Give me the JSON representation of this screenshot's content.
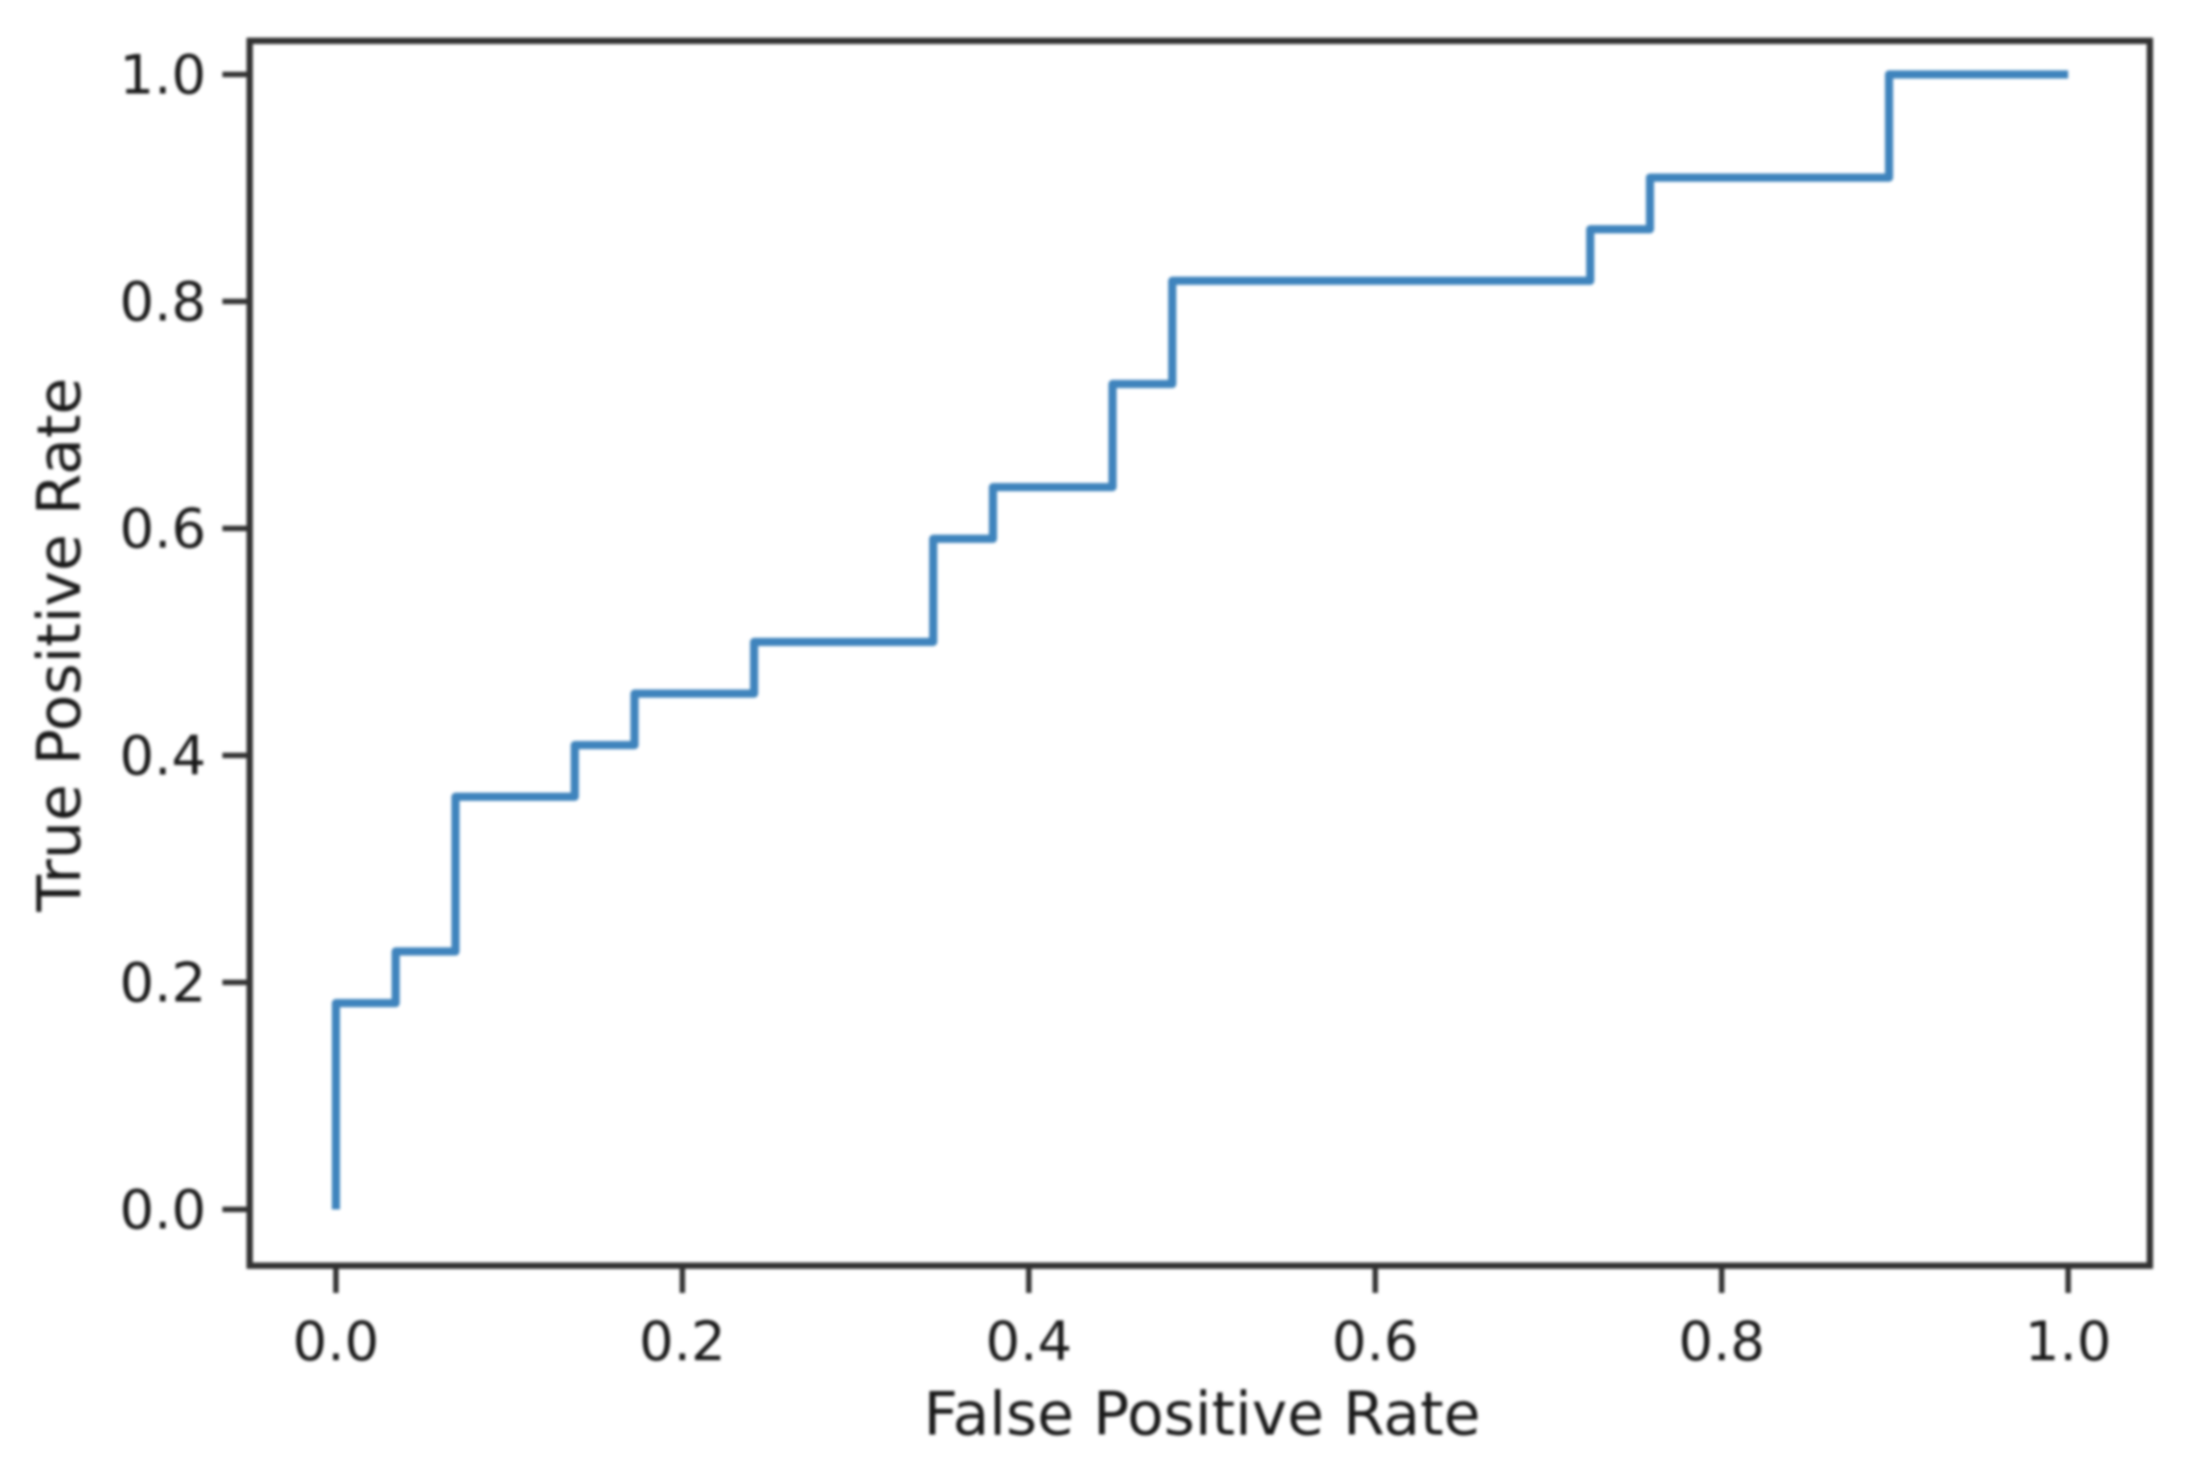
{
  "figure": {
    "background_color": "#ffffff",
    "axis_color": "#323232",
    "text_color": "#1a1a1a",
    "line_color": "#3f84bd",
    "x_axis": {
      "label": "False Positive Rate",
      "tick_labels": [
        "0.0",
        "0.2",
        "0.4",
        "0.6",
        "0.8",
        "1.0"
      ],
      "tick_values": [
        0.0,
        0.2,
        0.4,
        0.6,
        0.8,
        1.0
      ]
    },
    "y_axis": {
      "label": "True Positive Rate",
      "tick_labels": [
        "0.0",
        "0.2",
        "0.4",
        "0.6",
        "0.8",
        "1.0"
      ],
      "tick_values": [
        0.0,
        0.2,
        0.4,
        0.6,
        0.8,
        1.0
      ]
    }
  },
  "chart_data": {
    "type": "line",
    "subtype": "step (ROC curve)",
    "title": "",
    "xlabel": "False Positive Rate",
    "ylabel": "True Positive Rate",
    "xlim": [
      -0.05,
      1.05
    ],
    "ylim": [
      -0.05,
      1.05
    ],
    "grid": false,
    "legend": "none",
    "series": [
      {
        "name": "ROC curve",
        "color": "#3f84bd",
        "points": [
          [
            0.0,
            0.0
          ],
          [
            0.0,
            0.1818
          ],
          [
            0.0345,
            0.1818
          ],
          [
            0.0345,
            0.2273
          ],
          [
            0.069,
            0.2273
          ],
          [
            0.069,
            0.3636
          ],
          [
            0.1379,
            0.3636
          ],
          [
            0.1379,
            0.4091
          ],
          [
            0.1724,
            0.4091
          ],
          [
            0.1724,
            0.4545
          ],
          [
            0.2414,
            0.4545
          ],
          [
            0.2414,
            0.5
          ],
          [
            0.3448,
            0.5
          ],
          [
            0.3448,
            0.5909
          ],
          [
            0.3793,
            0.5909
          ],
          [
            0.3793,
            0.6364
          ],
          [
            0.4483,
            0.6364
          ],
          [
            0.4483,
            0.7273
          ],
          [
            0.4828,
            0.7273
          ],
          [
            0.4828,
            0.8182
          ],
          [
            0.7241,
            0.8182
          ],
          [
            0.7241,
            0.8636
          ],
          [
            0.7586,
            0.8636
          ],
          [
            0.7586,
            0.9091
          ],
          [
            0.8966,
            0.9091
          ],
          [
            0.8966,
            1.0
          ],
          [
            1.0,
            1.0
          ]
        ]
      }
    ]
  }
}
